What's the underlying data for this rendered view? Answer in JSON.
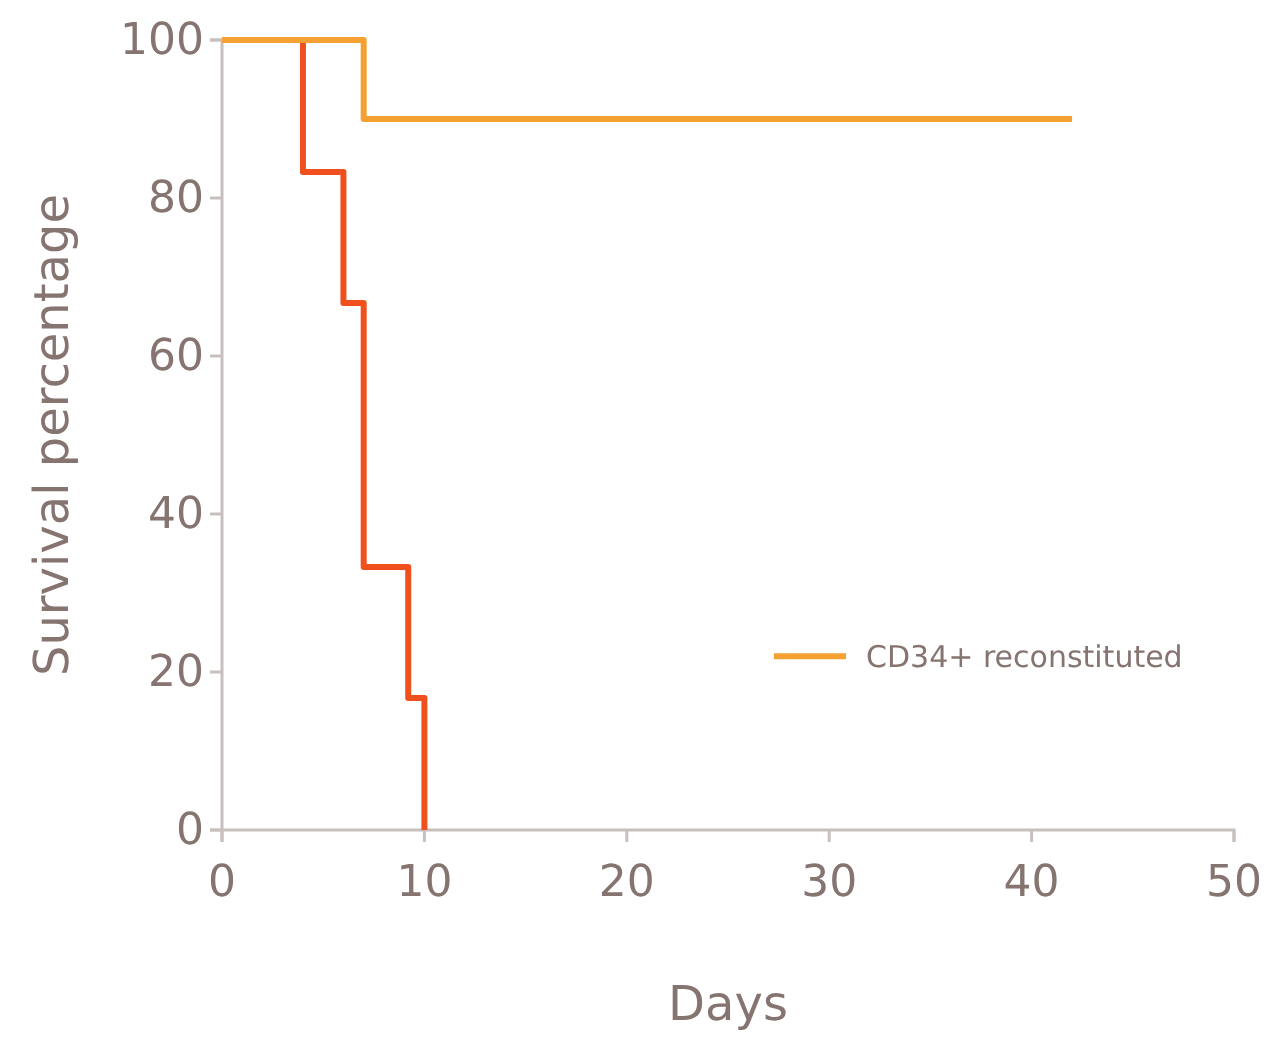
{
  "chart_data": {
    "type": "step",
    "xlabel": "Days",
    "ylabel": "Survival percentage",
    "xlim": [
      0,
      50
    ],
    "xticks": [
      0,
      10,
      20,
      30,
      40,
      50
    ],
    "ylim": [
      0,
      100
    ],
    "yticks": [
      0,
      20,
      40,
      60,
      80,
      100
    ],
    "grid": false,
    "legend": "right",
    "marker": "none",
    "series": [
      {
        "color": "#f0501e",
        "x": [
          0,
          4,
          6,
          7,
          9.2,
          10
        ],
        "values": [
          100,
          83.3,
          66.7,
          33.3,
          16.7,
          0
        ]
      },
      {
        "name": "CD34+ reconstituted",
        "color": "#f5a033",
        "x": [
          0,
          7,
          42
        ],
        "values": [
          100,
          90,
          90
        ]
      }
    ]
  }
}
